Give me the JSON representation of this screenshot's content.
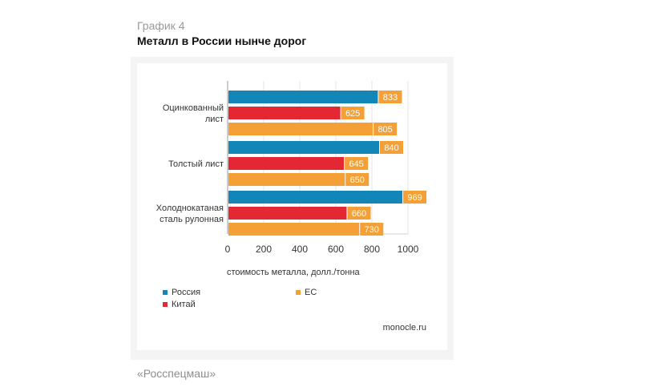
{
  "figure": {
    "label": "График 4",
    "title": "Металл в России нынче дорог",
    "source": "«Росспецмаш»",
    "watermark": "monocle.ru"
  },
  "chart_data": {
    "type": "bar",
    "orientation": "horizontal",
    "categories": [
      [
        "Оцинкованный",
        "лист"
      ],
      [
        "Толстый лист"
      ],
      [
        "Холоднокатаная",
        "сталь рулонная"
      ]
    ],
    "series": [
      {
        "name": "Россия",
        "color": "#1287b7",
        "values": [
          833,
          840,
          969
        ]
      },
      {
        "name": "Китай",
        "color": "#e32733",
        "values": [
          625,
          645,
          660
        ]
      },
      {
        "name": "ЕС",
        "color": "#f4a036",
        "values": [
          805,
          650,
          730
        ]
      }
    ],
    "label_color": "#f4a036",
    "xlabel": "стоимость металла, долл./тонна",
    "xlim": [
      0,
      1000
    ],
    "xticks": [
      0,
      200,
      400,
      600,
      800,
      1000
    ],
    "grid": true,
    "legend_position": "bottom"
  }
}
